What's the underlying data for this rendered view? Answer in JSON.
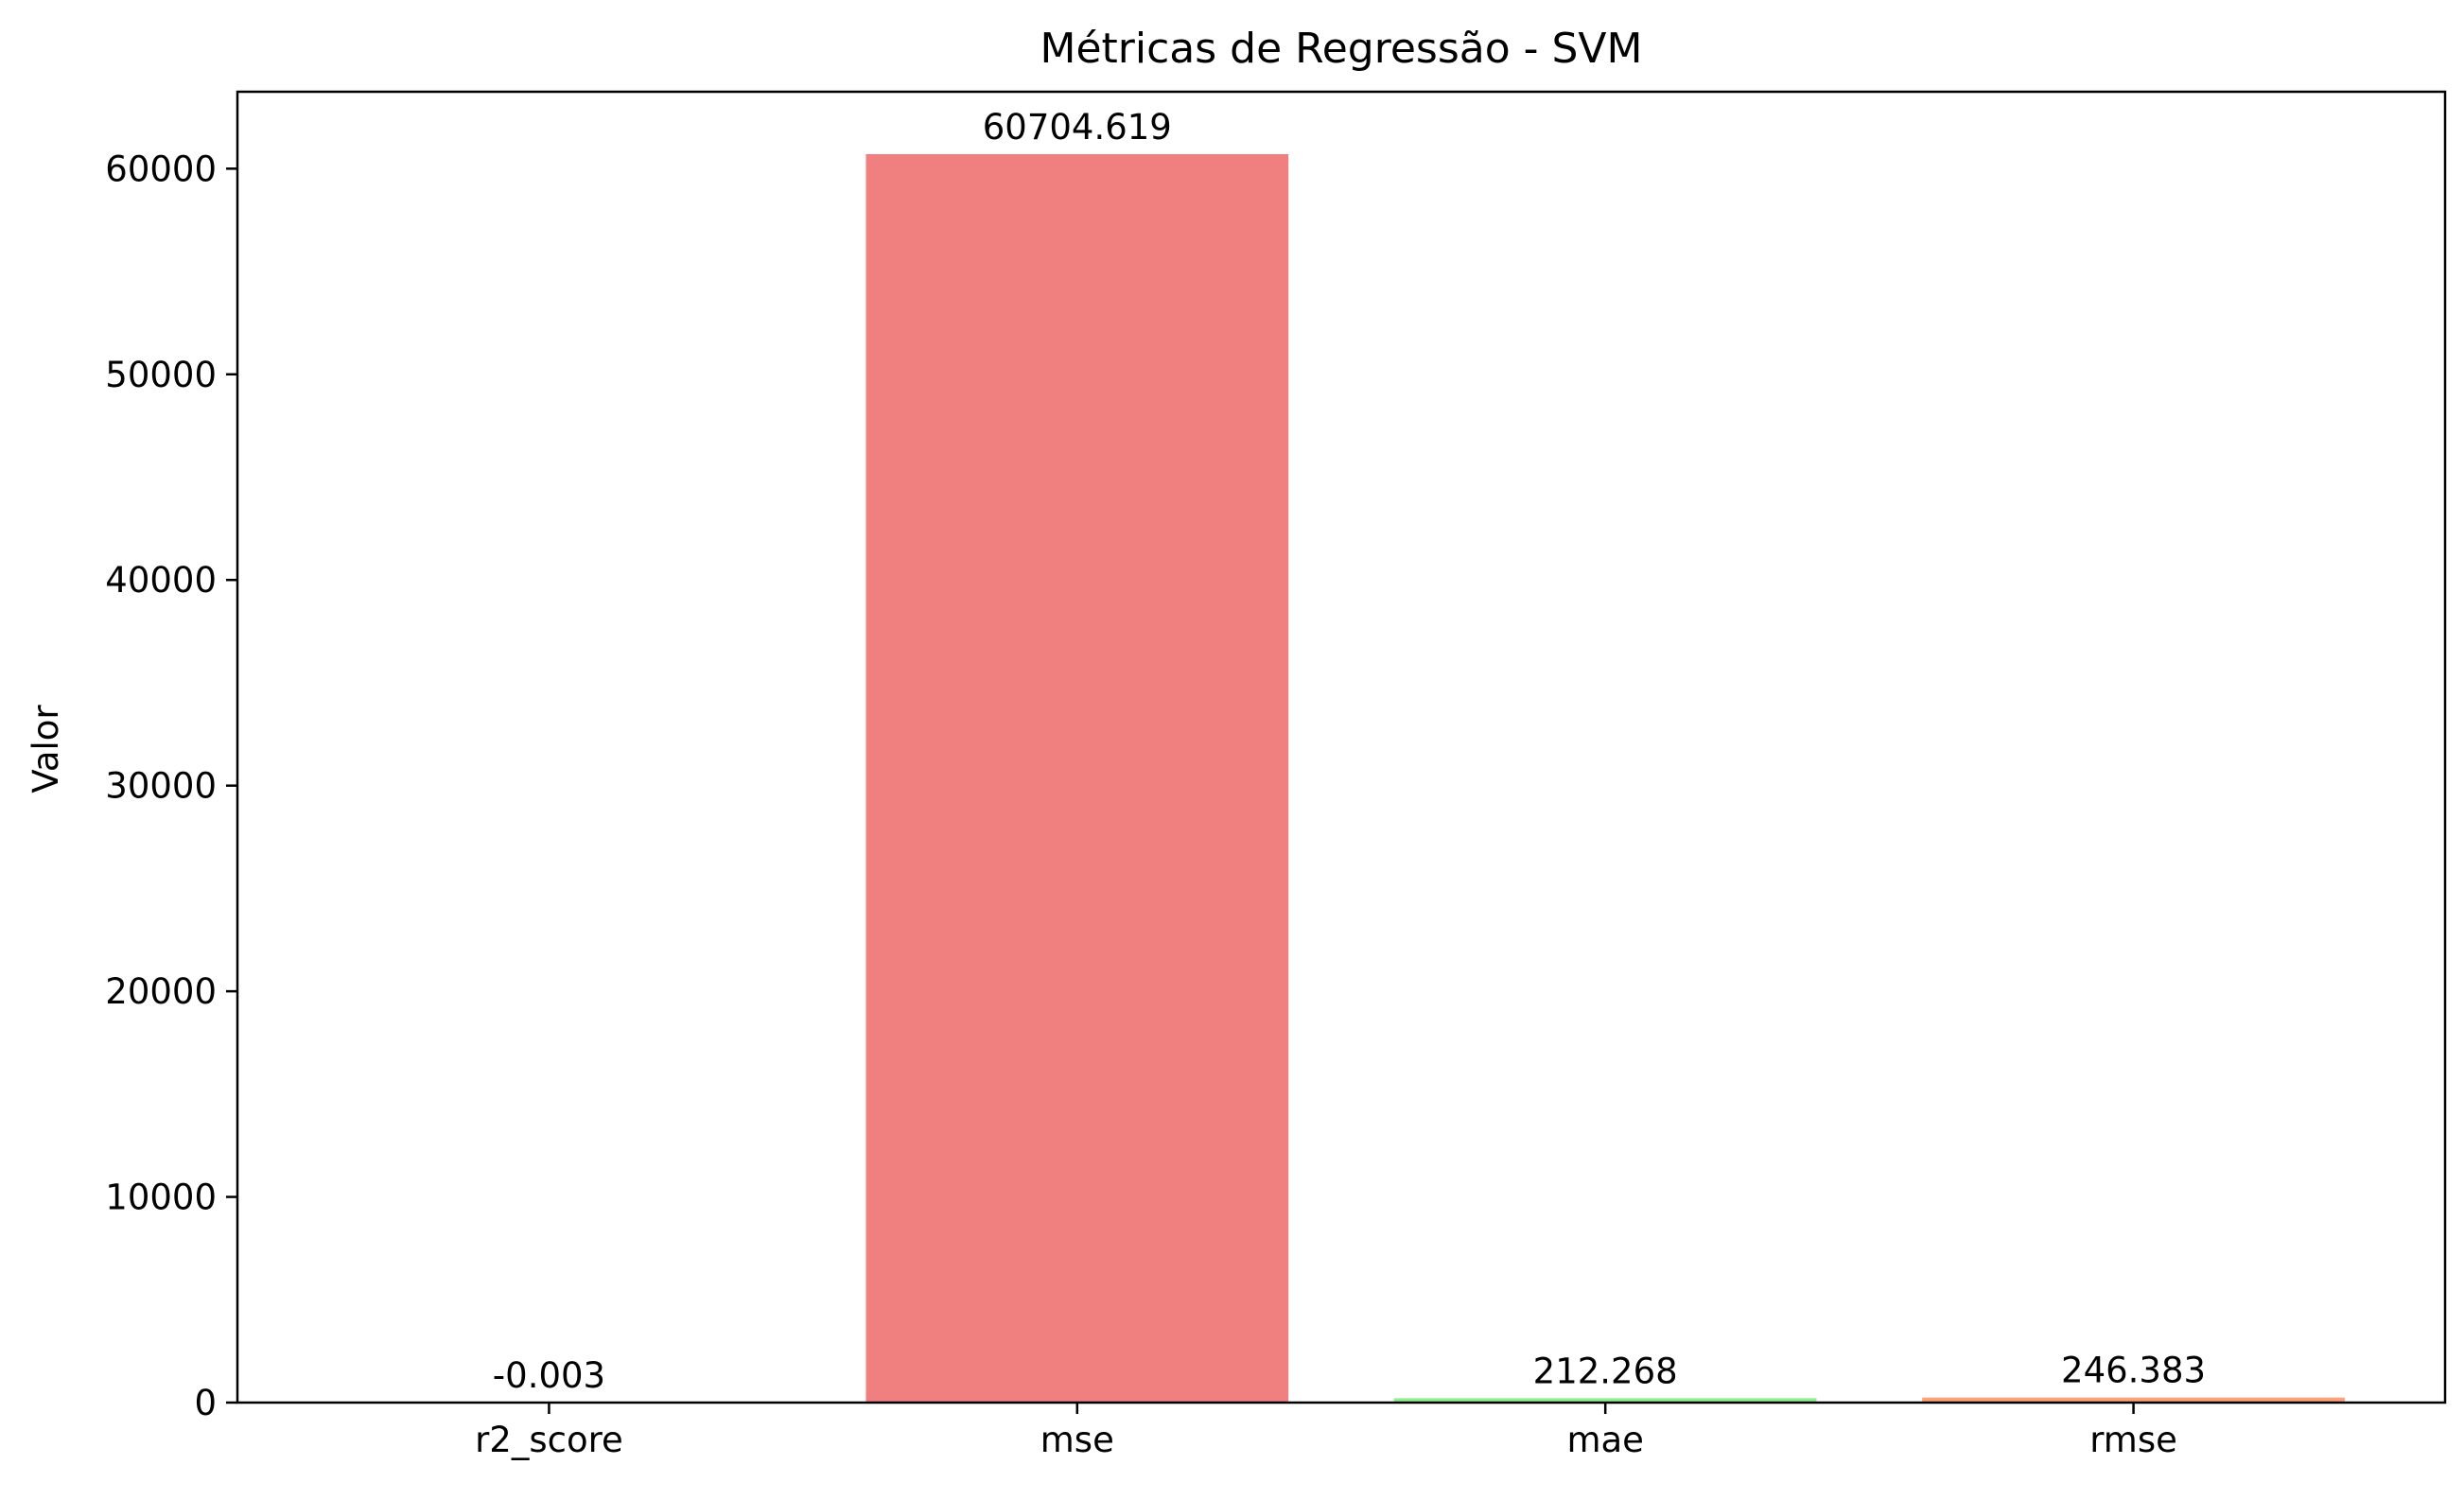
{
  "chart_data": {
    "type": "bar",
    "title": "Métricas de Regressão - SVM",
    "xlabel": "",
    "ylabel": "Valor",
    "categories": [
      "r2_score",
      "mse",
      "mae",
      "rmse"
    ],
    "values": [
      -0.003,
      60704.619,
      212.268,
      246.383
    ],
    "data_labels": [
      "-0.003",
      "60704.619",
      "212.268",
      "246.383"
    ],
    "colors": [
      "#87ceeb",
      "#f08080",
      "#90ee90",
      "#ffa07a"
    ],
    "ylim": [
      0,
      63740
    ],
    "yticks": [
      0,
      10000,
      20000,
      30000,
      40000,
      50000,
      60000
    ],
    "ytick_labels": [
      "0",
      "10000",
      "20000",
      "30000",
      "40000",
      "50000",
      "60000"
    ],
    "grid": false,
    "legend": null
  }
}
